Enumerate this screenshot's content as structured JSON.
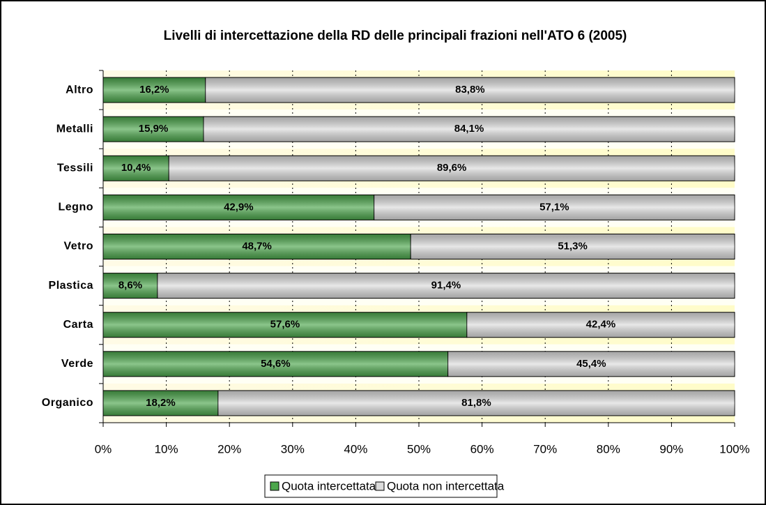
{
  "chart_data": {
    "type": "stacked_bar_horizontal",
    "title": "Livelli di intercettazione della RD delle principali frazioni nell'ATO 6 (2005)",
    "categories": [
      "Altro",
      "Metalli",
      "Tessili",
      "Legno",
      "Vetro",
      "Plastica",
      "Carta",
      "Verde",
      "Organico"
    ],
    "series": [
      {
        "name": "Quota intercettata",
        "color": "#4ca64c",
        "values": [
          16.2,
          15.9,
          10.4,
          42.9,
          48.7,
          8.6,
          57.6,
          54.6,
          18.2
        ],
        "value_labels": [
          "16,2%",
          "15,9%",
          "10,4%",
          "42,9%",
          "48,7%",
          "8,6%",
          "57,6%",
          "54,6%",
          "18,2%"
        ]
      },
      {
        "name": "Quota non intercettata",
        "color": "#dcdcdc",
        "values": [
          83.8,
          84.1,
          89.6,
          57.1,
          51.3,
          91.4,
          42.4,
          45.4,
          81.8
        ],
        "value_labels": [
          "83,8%",
          "84,1%",
          "89,6%",
          "57,1%",
          "51,3%",
          "91,4%",
          "42,4%",
          "45,4%",
          "81,8%"
        ]
      }
    ],
    "xlim": [
      0,
      100
    ],
    "xticks": [
      {
        "value": 0,
        "label": "0%"
      },
      {
        "value": 10,
        "label": "10%"
      },
      {
        "value": 20,
        "label": "20%"
      },
      {
        "value": 30,
        "label": "30%"
      },
      {
        "value": 40,
        "label": "40%"
      },
      {
        "value": 50,
        "label": "50%"
      },
      {
        "value": 60,
        "label": "60%"
      },
      {
        "value": 70,
        "label": "70%"
      },
      {
        "value": 80,
        "label": "80%"
      },
      {
        "value": 90,
        "label": "90%"
      },
      {
        "value": 100,
        "label": "100%"
      }
    ],
    "grid": true,
    "legend": "bottom"
  }
}
